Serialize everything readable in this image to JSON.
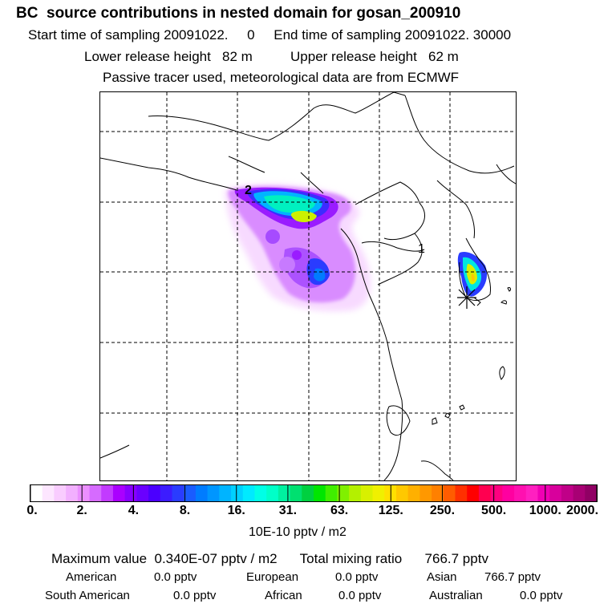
{
  "header": {
    "title": "BC  source contributions in nested domain for gosan_200910",
    "start_label": "Start time of sampling",
    "start_value": "20091022.",
    "start_hour": "0",
    "end_label": "End time of sampling",
    "end_value": "20091022. 30000",
    "lower_label": "Lower release height",
    "lower_value": "82 m",
    "upper_label": "Upper release height",
    "upper_value": "62 m",
    "tracer_note": "Passive tracer used, meteorological data are from ECMWF"
  },
  "map": {
    "markers": [
      "1",
      "2"
    ]
  },
  "colorbar": {
    "ticks": [
      "0.",
      "2.",
      "4.",
      "8.",
      "16.",
      "31.",
      "63.",
      "125.",
      "250.",
      "500.",
      "1000.",
      "2000."
    ],
    "units": "10E-10 pptv / m2",
    "colors": [
      "#ffffff",
      "#fde6ff",
      "#f9ccff",
      "#f2b0ff",
      "#eb8fff",
      "#d66bff",
      "#c23bff",
      "#aa00ff",
      "#8800ff",
      "#6a00ff",
      "#4b00ff",
      "#3c1cff",
      "#2a3cff",
      "#1a5cff",
      "#007cff",
      "#0096ff",
      "#00b4ff",
      "#00d0ff",
      "#00eaff",
      "#00ffe6",
      "#00ffc8",
      "#00f0a0",
      "#00e070",
      "#00d040",
      "#00e600",
      "#40ee00",
      "#80f000",
      "#b4f000",
      "#d8f000",
      "#f0f000",
      "#ffe000",
      "#ffc800",
      "#ffb000",
      "#ff9800",
      "#ff8000",
      "#ff5c00",
      "#ff3000",
      "#ff0000",
      "#ff0050",
      "#ff0080",
      "#ff00a0",
      "#ff10b0",
      "#ff20c0",
      "#f000b4",
      "#d8009c",
      "#c00088",
      "#a80074",
      "#900064"
    ]
  },
  "summary": {
    "max_label": "Maximum value",
    "max_value": "0.340E-07 pptv / m2",
    "total_label": "Total mixing ratio",
    "total_value": "766.7 pptv",
    "regions": [
      {
        "name": "American",
        "value": "0.0 pptv"
      },
      {
        "name": "European",
        "value": "0.0 pptv"
      },
      {
        "name": "Asian",
        "value": "766.7 pptv"
      },
      {
        "name": "South American",
        "value": "0.0 pptv"
      },
      {
        "name": "African",
        "value": "0.0 pptv"
      },
      {
        "name": "Australian",
        "value": "0.0 pptv"
      }
    ]
  }
}
